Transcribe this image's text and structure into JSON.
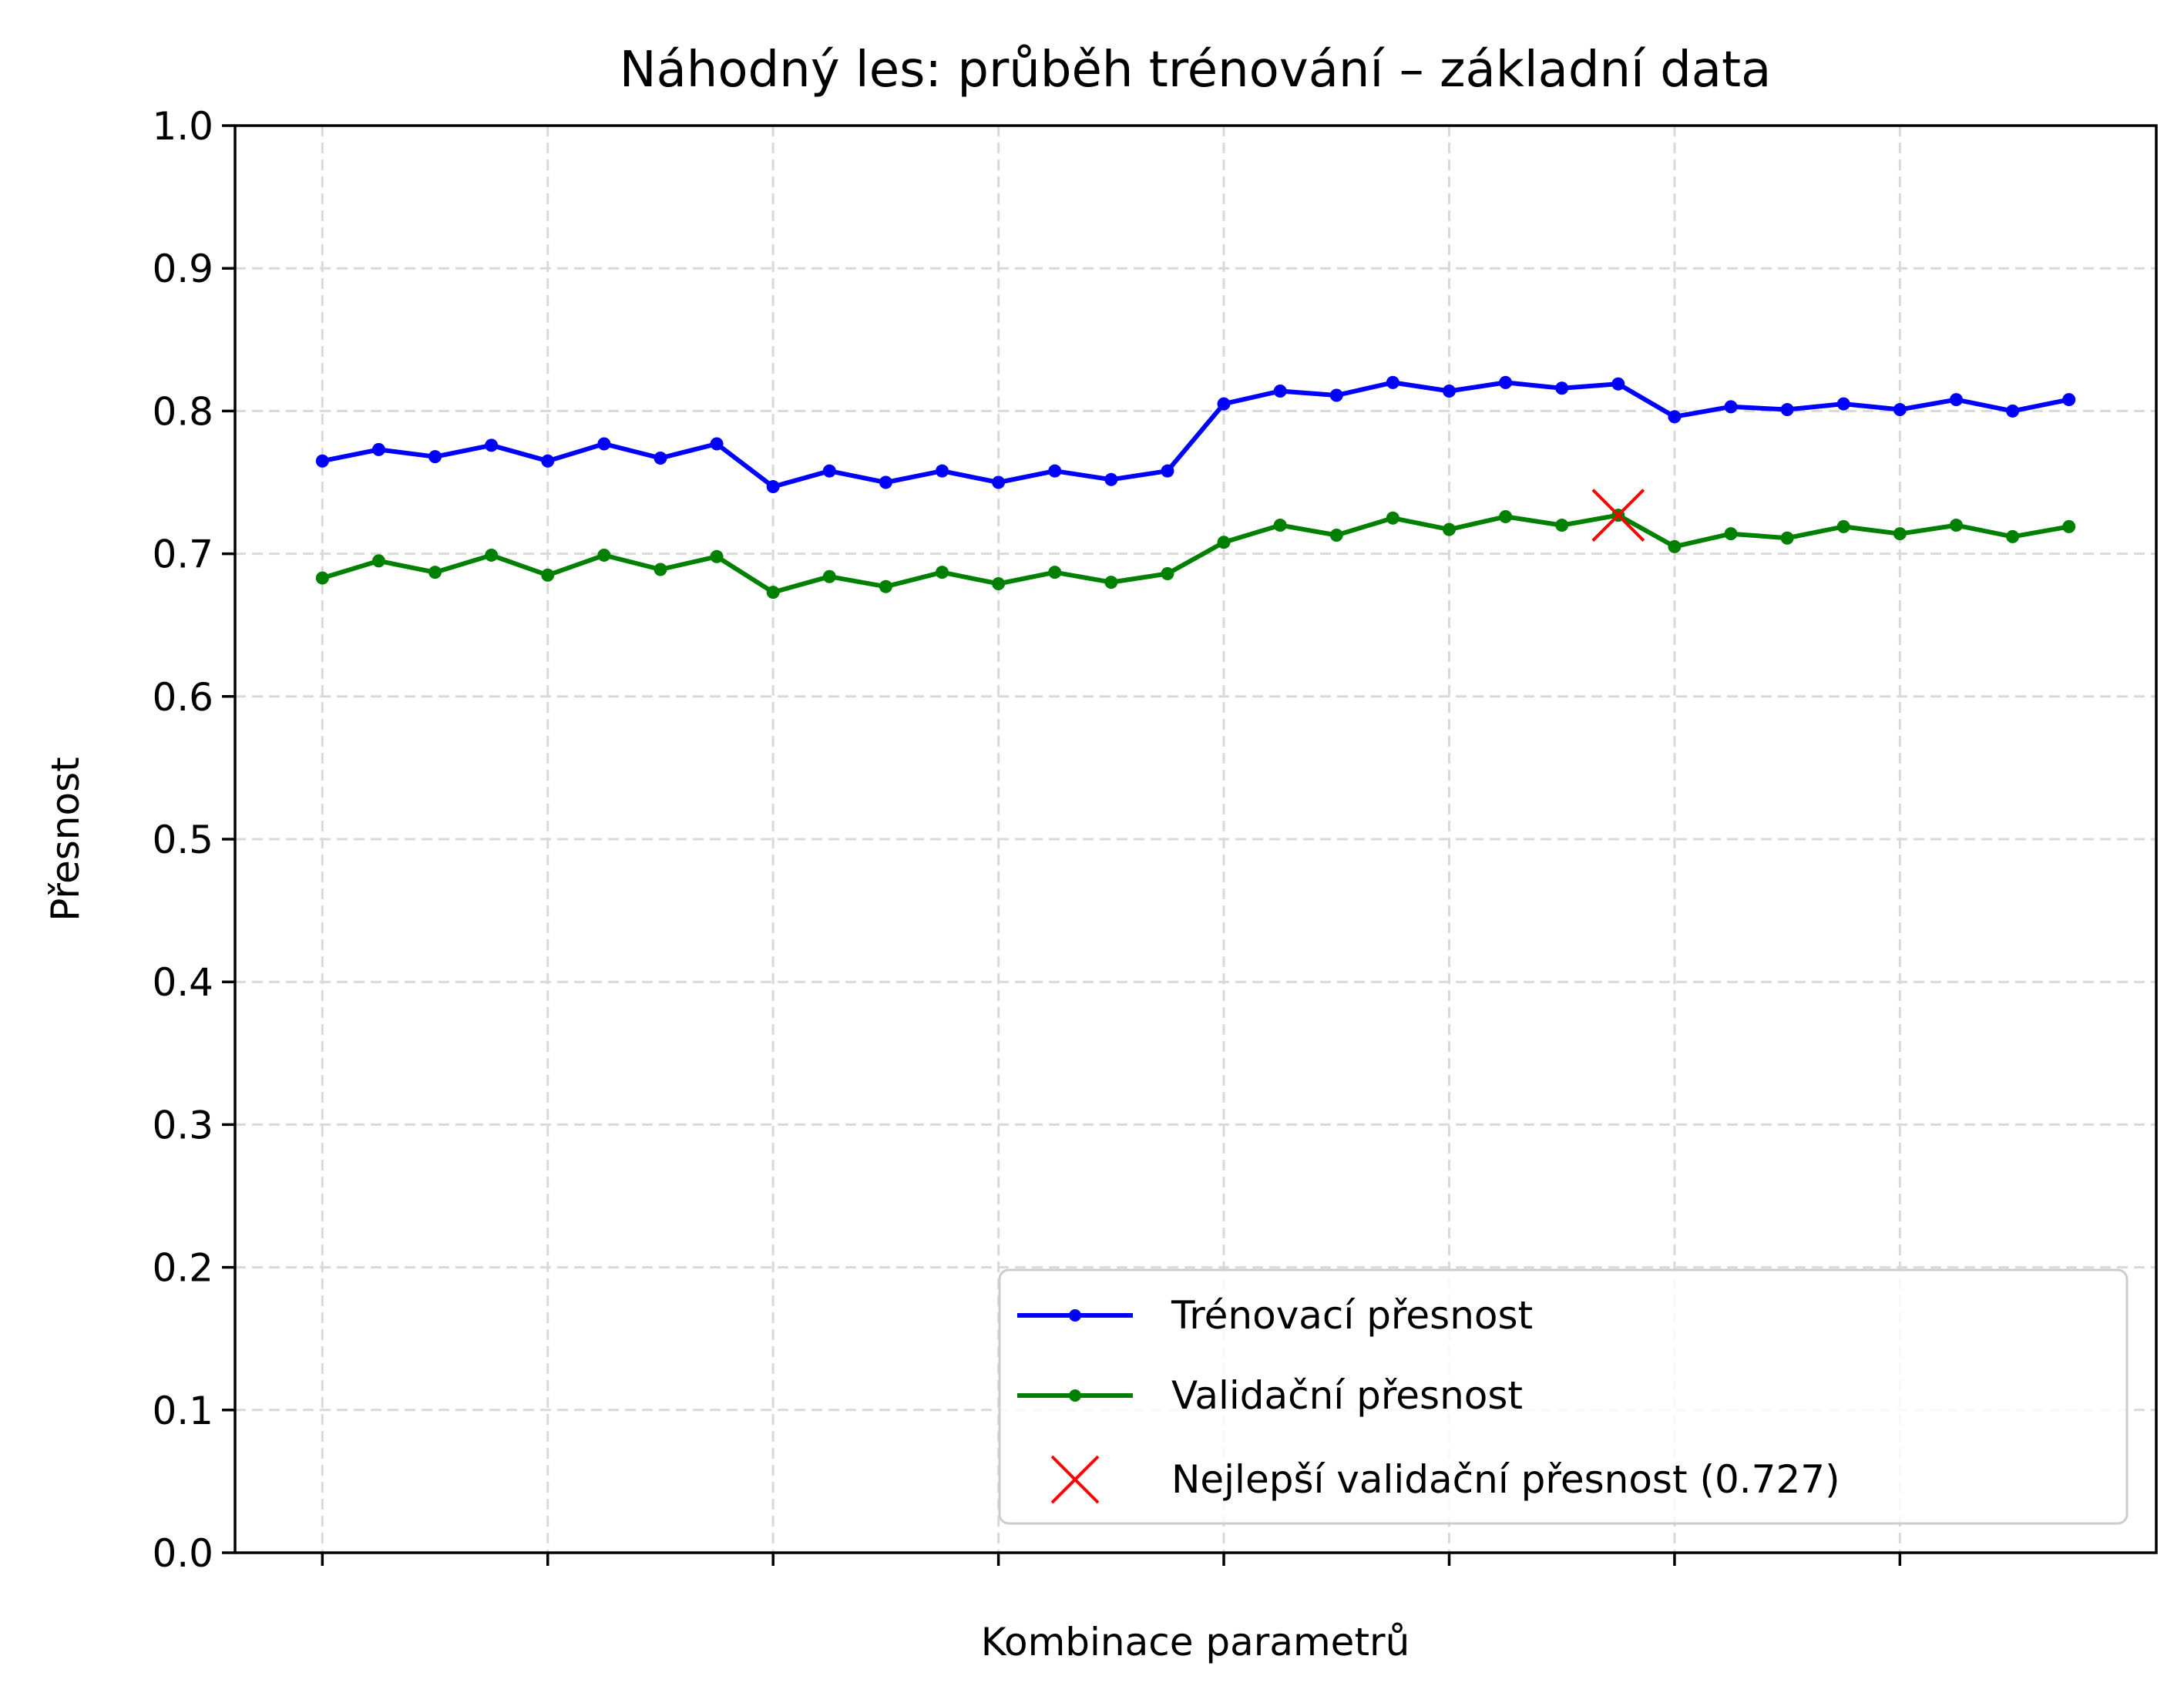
{
  "chart_data": {
    "type": "line",
    "title": "Náhodný les: průběh trénování – základní data",
    "xlabel": "Kombinace parametrů",
    "ylabel": "Přesnost",
    "ylim": [
      0,
      1
    ],
    "yticks": [
      "0.0",
      "0.1",
      "0.2",
      "0.3",
      "0.4",
      "0.5",
      "0.6",
      "0.7",
      "0.8",
      "0.9",
      "1.0"
    ],
    "x": [
      0,
      1,
      2,
      3,
      4,
      5,
      6,
      7,
      8,
      9,
      10,
      11,
      12,
      13,
      14,
      15,
      16,
      17,
      18,
      19,
      20,
      21,
      22,
      23,
      24,
      25,
      26,
      27,
      28,
      29,
      30,
      31
    ],
    "xlim": [
      -1.55,
      32.55
    ],
    "xticks": [
      0,
      4,
      8,
      12,
      16,
      20,
      24,
      28
    ],
    "grid": true,
    "legend_position": "lower-right",
    "series": [
      {
        "name": "Trénovací přesnost",
        "color": "#0000ff",
        "values": [
          0.765,
          0.773,
          0.768,
          0.776,
          0.765,
          0.777,
          0.767,
          0.777,
          0.747,
          0.758,
          0.75,
          0.758,
          0.75,
          0.758,
          0.752,
          0.758,
          0.805,
          0.814,
          0.811,
          0.82,
          0.814,
          0.82,
          0.816,
          0.819,
          0.796,
          0.803,
          0.801,
          0.805,
          0.801,
          0.808,
          0.8,
          0.808
        ]
      },
      {
        "name": "Validační přesnost",
        "color": "#008000",
        "values": [
          0.683,
          0.695,
          0.687,
          0.699,
          0.685,
          0.699,
          0.689,
          0.698,
          0.673,
          0.684,
          0.677,
          0.687,
          0.679,
          0.687,
          0.68,
          0.686,
          0.708,
          0.72,
          0.713,
          0.725,
          0.717,
          0.726,
          0.72,
          0.727,
          0.705,
          0.714,
          0.711,
          0.719,
          0.714,
          0.72,
          0.712,
          0.719
        ]
      }
    ],
    "annotations": [
      {
        "name": "Nejlepší validační přesnost (0.727)",
        "marker": "x",
        "color": "#ff0000",
        "x": 23,
        "y": 0.727
      }
    ]
  }
}
